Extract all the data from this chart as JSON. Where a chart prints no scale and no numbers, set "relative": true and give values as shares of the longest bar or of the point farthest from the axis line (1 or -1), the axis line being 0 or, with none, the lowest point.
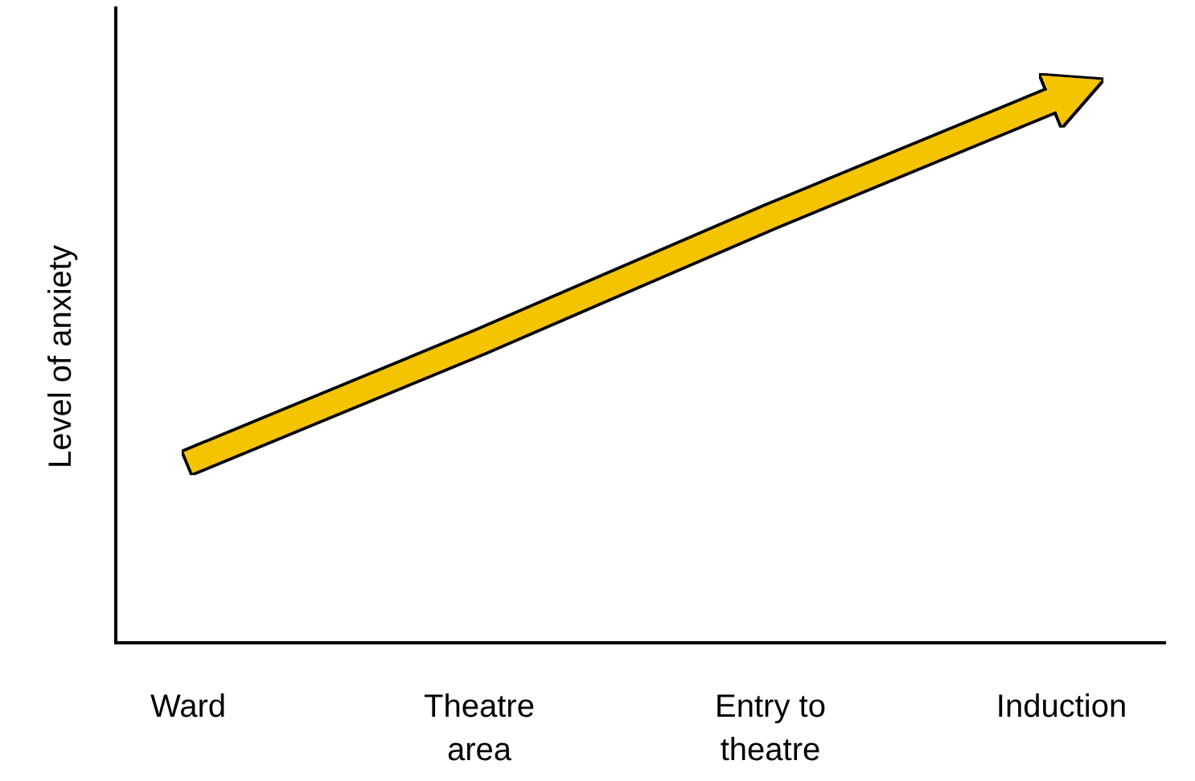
{
  "chart_data": {
    "type": "line",
    "relative": true,
    "ylabel": "Level of anxiety",
    "categories": [
      "Ward",
      "Theatre area",
      "Entry to theatre",
      "Induction"
    ],
    "series": [
      {
        "color": "#f5c400",
        "values": [
          0.33,
          0.55,
          0.78,
          1
        ]
      }
    ]
  }
}
